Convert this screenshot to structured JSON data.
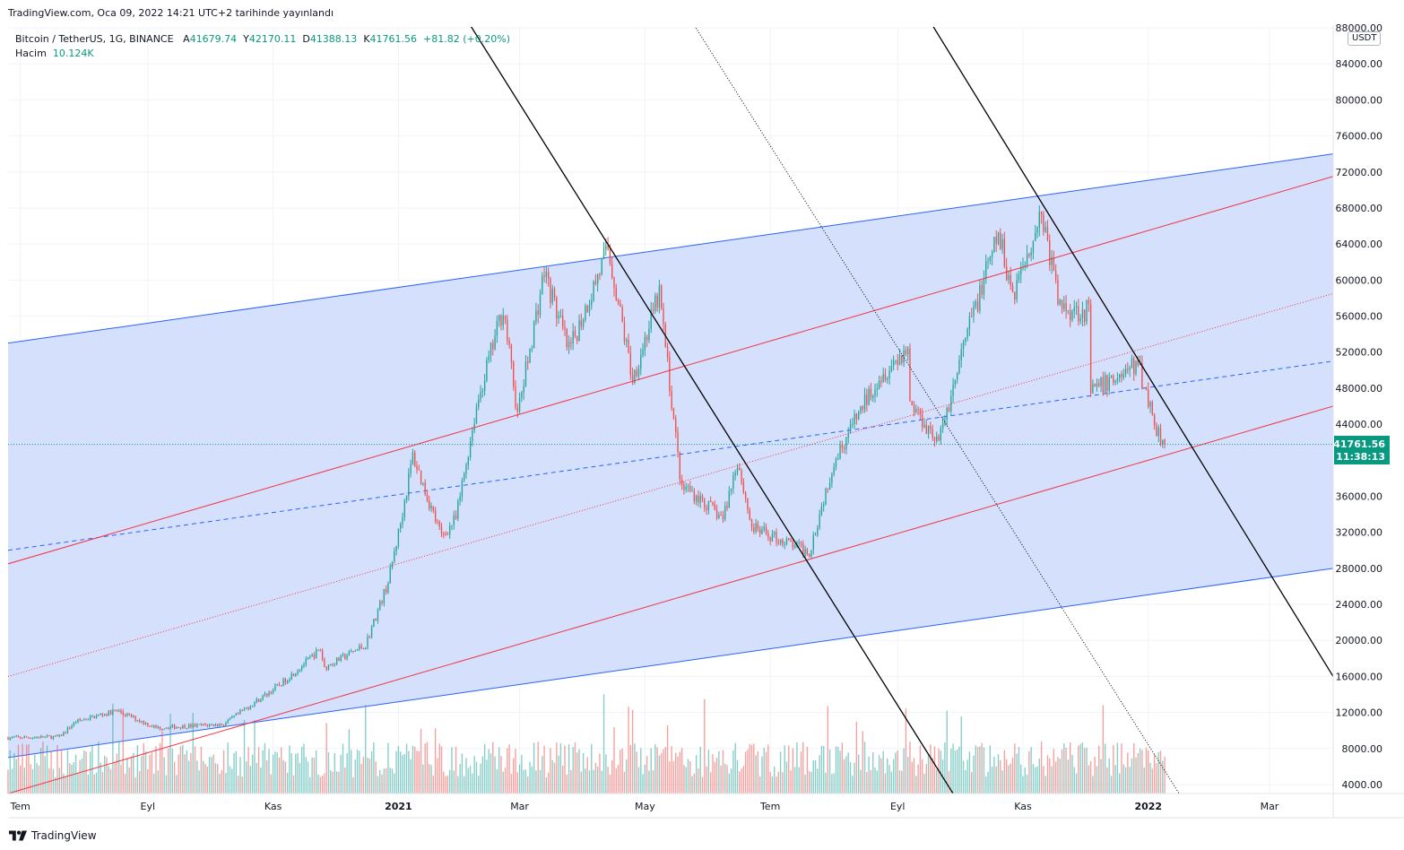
{
  "header": {
    "published": "TradingView.com, Oca 09, 2022 14:21 UTC+2 tarihinde yayınlandı"
  },
  "legend": {
    "symbol": "Bitcoin / TetherUS, 1G, BINANCE",
    "open_label": "A",
    "open": "41679.74",
    "high_label": "Y",
    "high": "42170.11",
    "low_label": "D",
    "low": "41388.13",
    "close_label": "K",
    "close": "41761.56",
    "change": "+81.82 (+0.20%)",
    "volume_label": "Hacim",
    "volume": "10.124K"
  },
  "price_scale": {
    "currency": "USDT",
    "last_price": "41761.56",
    "countdown": "11:38:13"
  },
  "footer": {
    "brand": "TradingView"
  },
  "colors": {
    "up": "#26a69a",
    "down": "#ef5350",
    "channel_fill": "#d3defd",
    "channel_line": "#2962ff",
    "regression_line": "#f23645",
    "trend_line": "#000000",
    "last_price_bg": "#089981"
  },
  "chart_data": {
    "type": "candlestick",
    "symbol": "Bitcoin / TetherUS",
    "interval": "1G",
    "exchange": "BINANCE",
    "ylim": [
      4000,
      88000
    ],
    "y_ticks": [
      88000,
      84000,
      80000,
      76000,
      72000,
      68000,
      64000,
      60000,
      56000,
      52000,
      48000,
      44000,
      40000,
      36000,
      32000,
      28000,
      24000,
      20000,
      16000,
      12000,
      8000,
      4000
    ],
    "x_ticks": [
      {
        "label": "Tem",
        "date": "2020-07-01",
        "bold": false
      },
      {
        "label": "Eyl",
        "date": "2020-09-01",
        "bold": false
      },
      {
        "label": "Kas",
        "date": "2020-11-01",
        "bold": false
      },
      {
        "label": "2021",
        "date": "2021-01-01",
        "bold": true
      },
      {
        "label": "Mar",
        "date": "2021-03-01",
        "bold": false
      },
      {
        "label": "May",
        "date": "2021-05-01",
        "bold": false
      },
      {
        "label": "Tem",
        "date": "2021-07-01",
        "bold": false
      },
      {
        "label": "Eyl",
        "date": "2021-09-01",
        "bold": false
      },
      {
        "label": "Kas",
        "date": "2021-11-01",
        "bold": false
      },
      {
        "label": "2022",
        "date": "2022-01-01",
        "bold": true
      },
      {
        "label": "Mar",
        "date": "2022-03-01",
        "bold": false
      }
    ],
    "x_range": [
      "2020-06-25",
      "2022-04-01"
    ],
    "price_path": [
      [
        "2020-06-25",
        9200
      ],
      [
        "2020-07-20",
        9300
      ],
      [
        "2020-07-28",
        11000
      ],
      [
        "2020-08-17",
        12200
      ],
      [
        "2020-09-05",
        10300
      ],
      [
        "2020-10-08",
        10700
      ],
      [
        "2020-10-21",
        12800
      ],
      [
        "2020-11-05",
        15200
      ],
      [
        "2020-11-24",
        19000
      ],
      [
        "2020-11-26",
        17000
      ],
      [
        "2020-12-16",
        19500
      ],
      [
        "2020-12-27",
        26500
      ],
      [
        "2021-01-02",
        33000
      ],
      [
        "2021-01-08",
        40500
      ],
      [
        "2021-01-22",
        31500
      ],
      [
        "2021-01-29",
        33500
      ],
      [
        "2021-02-08",
        46000
      ],
      [
        "2021-02-21",
        57000
      ],
      [
        "2021-02-28",
        45000
      ],
      [
        "2021-03-13",
        61000
      ],
      [
        "2021-03-25",
        52000
      ],
      [
        "2021-04-13",
        63500
      ],
      [
        "2021-04-25",
        49000
      ],
      [
        "2021-05-08",
        58500
      ],
      [
        "2021-05-19",
        36500
      ],
      [
        "2021-05-21",
        37000
      ],
      [
        "2021-06-08",
        33500
      ],
      [
        "2021-06-15",
        40000
      ],
      [
        "2021-06-22",
        32500
      ],
      [
        "2021-07-20",
        29800
      ],
      [
        "2021-08-01",
        40000
      ],
      [
        "2021-08-22",
        49000
      ],
      [
        "2021-09-06",
        52500
      ],
      [
        "2021-09-07",
        46500
      ],
      [
        "2021-09-21",
        42000
      ],
      [
        "2021-10-06",
        55000
      ],
      [
        "2021-10-20",
        65000
      ],
      [
        "2021-10-27",
        58500
      ],
      [
        "2021-11-10",
        67500
      ],
      [
        "2021-11-19",
        57000
      ],
      [
        "2021-12-03",
        56500
      ],
      [
        "2021-12-04",
        47500
      ],
      [
        "2021-12-27",
        50700
      ],
      [
        "2022-01-05",
        43500
      ],
      [
        "2022-01-09",
        41761.56
      ]
    ],
    "volume": {
      "axis_label": "Hacim",
      "last": "10.124K"
    },
    "last_price": 41761.56,
    "annotations": {
      "regression_channel": {
        "upper": [
          [
            "2020-06-25",
            53000
          ],
          [
            "2022-04-01",
            74000
          ]
        ],
        "middle": [
          [
            "2020-06-25",
            30000
          ],
          [
            "2022-04-01",
            51000
          ]
        ],
        "lower": [
          [
            "2020-06-25",
            7000
          ],
          [
            "2022-04-01",
            28000
          ]
        ]
      },
      "pitchfork": {
        "upper": [
          [
            "2020-06-25",
            28500
          ],
          [
            "2022-04-01",
            71500
          ]
        ],
        "median": [
          [
            "2020-06-25",
            16000
          ],
          [
            "2022-04-01",
            58500
          ]
        ],
        "lower": [
          [
            "2020-06-25",
            3000
          ],
          [
            "2022-04-01",
            46000
          ]
        ]
      },
      "trend_lines": [
        [
          [
            "2021-02-03",
            89000
          ],
          [
            "2021-09-28",
            3000
          ]
        ],
        [
          [
            "2021-05-23",
            89000
          ],
          [
            "2022-01-16",
            3000
          ]
        ],
        [
          [
            "2021-09-16",
            89000
          ],
          [
            "2022-04-01",
            16000
          ]
        ]
      ]
    }
  }
}
